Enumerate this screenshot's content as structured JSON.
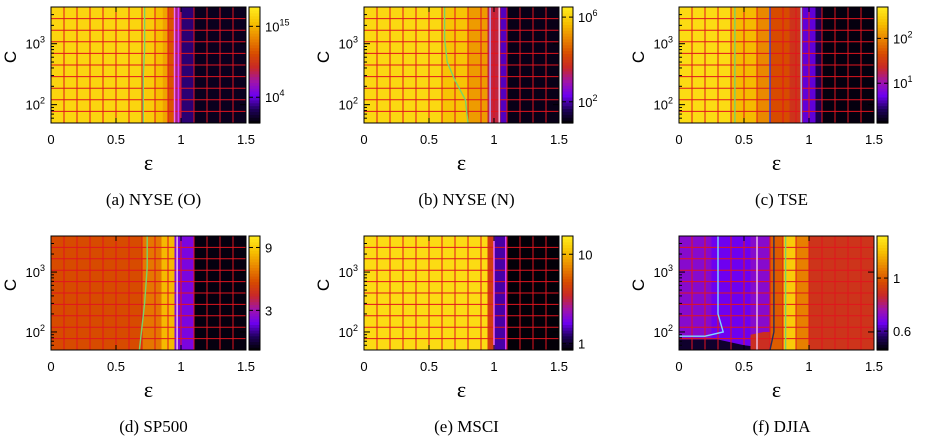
{
  "chart_data": [
    {
      "type": "heatmap",
      "caption": "(a) NYSE (O)",
      "xlabel": "ε",
      "ylabel": "C",
      "xlim": [
        0,
        1.5
      ],
      "ylim": [
        50,
        4000
      ],
      "y_scale": "log",
      "xticks": [
        {
          "v": 0,
          "label": "0"
        },
        {
          "v": 0.5,
          "label": "0.5"
        },
        {
          "v": 1,
          "label": "1"
        },
        {
          "v": 1.5,
          "label": "1.5"
        }
      ],
      "yticks": [
        {
          "v": 100,
          "base": "10",
          "exp": "2"
        },
        {
          "v": 1000,
          "base": "10",
          "exp": "3"
        }
      ],
      "colorbar": {
        "scale": "log",
        "range": [
          1,
          1e+18
        ],
        "ticks": [
          {
            "v": 10000.0,
            "base": "10",
            "exp": "4"
          },
          {
            "v": 1000000000000000.0,
            "base": "10",
            "exp": "15"
          }
        ]
      },
      "grid": true,
      "bands": [
        {
          "x": [
            0,
            0.72
          ],
          "level": 0.93
        },
        {
          "x": [
            0.72,
            0.8
          ],
          "level": 0.9
        },
        {
          "x": [
            0.8,
            0.86
          ],
          "level": 0.86
        },
        {
          "x": [
            0.86,
            0.9
          ],
          "level": 0.8
        },
        {
          "x": [
            0.9,
            0.95
          ],
          "level": 0.62
        },
        {
          "x": [
            0.95,
            1.0
          ],
          "level": 0.4
        },
        {
          "x": [
            1.0,
            1.1
          ],
          "level": 0.14
        },
        {
          "x": [
            1.1,
            1.5
          ],
          "level": 0.04
        }
      ],
      "contours": [
        {
          "color": "#7ad16a",
          "points": [
            [
              0.72,
              4000
            ],
            [
              0.72,
              800
            ],
            [
              0.71,
              300
            ],
            [
              0.71,
              50
            ]
          ]
        },
        {
          "color": "#f070ff",
          "points": [
            [
              0.95,
              4000
            ],
            [
              0.95,
              50
            ]
          ]
        },
        {
          "color": "#d23cff",
          "points": [
            [
              0.98,
              4000
            ],
            [
              0.98,
              50
            ]
          ]
        }
      ]
    },
    {
      "type": "heatmap",
      "caption": "(b) NYSE (N)",
      "xlabel": "ε",
      "ylabel": "C",
      "xlim": [
        0,
        1.5
      ],
      "ylim": [
        50,
        4000
      ],
      "y_scale": "log",
      "xticks": [
        {
          "v": 0,
          "label": "0"
        },
        {
          "v": 0.5,
          "label": "0.5"
        },
        {
          "v": 1,
          "label": "1"
        },
        {
          "v": 1.5,
          "label": "1.5"
        }
      ],
      "yticks": [
        {
          "v": 100,
          "base": "10",
          "exp": "2"
        },
        {
          "v": 1000,
          "base": "10",
          "exp": "3"
        }
      ],
      "colorbar": {
        "scale": "log",
        "range": [
          10,
          3000000
        ],
        "ticks": [
          {
            "v": 100,
            "base": "10",
            "exp": "2"
          },
          {
            "v": 1000000,
            "base": "10",
            "exp": "6"
          }
        ]
      },
      "grid": true,
      "bands": [
        {
          "x": [
            0,
            0.6
          ],
          "level": 0.94
        },
        {
          "x": [
            0.6,
            0.8
          ],
          "level": 0.88
        },
        {
          "x": [
            0.8,
            0.95
          ],
          "level": 0.78
        },
        {
          "x": [
            0.95,
            1.05
          ],
          "level": 0.46
        },
        {
          "x": [
            1.05,
            1.1
          ],
          "level": 0.2
        },
        {
          "x": [
            1.1,
            1.5
          ],
          "level": 0.03
        }
      ],
      "contours": [
        {
          "color": "#7ad16a",
          "points": [
            [
              0.62,
              4000
            ],
            [
              0.62,
              1200
            ],
            [
              0.64,
              500
            ],
            [
              0.7,
              250
            ],
            [
              0.78,
              120
            ],
            [
              0.8,
              50
            ]
          ]
        },
        {
          "color": "#b8a8ff",
          "points": [
            [
              0.97,
              4000
            ],
            [
              0.97,
              50
            ]
          ]
        },
        {
          "color": "#f2c8e8",
          "points": [
            [
              1.04,
              4000
            ],
            [
              1.04,
              50
            ]
          ]
        }
      ]
    },
    {
      "type": "heatmap",
      "caption": "(c) TSE",
      "xlabel": "ε",
      "ylabel": "C",
      "xlim": [
        0,
        1.5
      ],
      "ylim": [
        50,
        4000
      ],
      "y_scale": "log",
      "xticks": [
        {
          "v": 0,
          "label": "0"
        },
        {
          "v": 0.5,
          "label": "0.5"
        },
        {
          "v": 1,
          "label": "1"
        },
        {
          "v": 1.5,
          "label": "1.5"
        }
      ],
      "yticks": [
        {
          "v": 100,
          "base": "10",
          "exp": "2"
        },
        {
          "v": 1000,
          "base": "10",
          "exp": "3"
        }
      ],
      "colorbar": {
        "scale": "log",
        "range": [
          1.3,
          500
        ],
        "ticks": [
          {
            "v": 10,
            "base": "10",
            "exp": "1"
          },
          {
            "v": 100,
            "base": "10",
            "exp": "2"
          }
        ]
      },
      "grid": true,
      "bands": [
        {
          "x": [
            0,
            0.4
          ],
          "level": 0.95
        },
        {
          "x": [
            0.4,
            0.6
          ],
          "level": 0.85
        },
        {
          "x": [
            0.6,
            0.7
          ],
          "level": 0.74
        },
        {
          "x": [
            0.7,
            0.85
          ],
          "level": 0.6
        },
        {
          "x": [
            0.85,
            0.95
          ],
          "level": 0.52
        },
        {
          "x": [
            0.95,
            1.05
          ],
          "level": 0.22
        },
        {
          "x": [
            1.05,
            1.1
          ],
          "level": 0.1
        },
        {
          "x": [
            1.1,
            1.5
          ],
          "level": 0.02
        }
      ],
      "contours": [
        {
          "color": "#7ad16a",
          "points": [
            [
              0.43,
              4000
            ],
            [
              0.43,
              50
            ]
          ]
        },
        {
          "color": "#3a3ad0",
          "points": [
            [
              0.7,
              4000
            ],
            [
              0.7,
              50
            ]
          ]
        },
        {
          "color": "#a8c8ff",
          "points": [
            [
              0.94,
              4000
            ],
            [
              0.94,
              50
            ]
          ]
        }
      ]
    },
    {
      "type": "heatmap",
      "caption": "(d) SP500",
      "xlabel": "ε",
      "ylabel": "C",
      "xlim": [
        0,
        1.5
      ],
      "ylim": [
        50,
        4000
      ],
      "y_scale": "log",
      "xticks": [
        {
          "v": 0,
          "label": "0"
        },
        {
          "v": 0.5,
          "label": "0.5"
        },
        {
          "v": 1,
          "label": "1"
        },
        {
          "v": 1.5,
          "label": "1.5"
        }
      ],
      "yticks": [
        {
          "v": 100,
          "base": "10",
          "exp": "2"
        },
        {
          "v": 1000,
          "base": "10",
          "exp": "3"
        }
      ],
      "colorbar": {
        "scale": "log",
        "range": [
          1.5,
          11
        ],
        "ticks": [
          {
            "v": 3,
            "label": "3"
          },
          {
            "v": 9,
            "label": "9"
          }
        ]
      },
      "grid": true,
      "bands": [
        {
          "x": [
            0,
            0.7
          ],
          "level": 0.6
        },
        {
          "x": [
            0.7,
            0.85
          ],
          "level": 0.7
        },
        {
          "x": [
            0.85,
            0.95
          ],
          "level": 0.85
        },
        {
          "x": [
            0.95,
            1.1
          ],
          "level": 0.27
        },
        {
          "x": [
            1.1,
            1.5
          ],
          "level": 0.02
        }
      ],
      "contours": [
        {
          "color": "#7ad16a",
          "points": [
            [
              0.74,
              4000
            ],
            [
              0.74,
              1200
            ],
            [
              0.72,
              300
            ],
            [
              0.68,
              50
            ]
          ]
        },
        {
          "color": "#f2c8e8",
          "points": [
            [
              0.97,
              4000
            ],
            [
              0.97,
              50
            ]
          ]
        }
      ]
    },
    {
      "type": "heatmap",
      "caption": "(e) MSCI",
      "xlabel": "ε",
      "ylabel": "C",
      "xlim": [
        0,
        1.5
      ],
      "ylim": [
        50,
        4000
      ],
      "y_scale": "log",
      "xticks": [
        {
          "v": 0,
          "label": "0"
        },
        {
          "v": 0.5,
          "label": "0.5"
        },
        {
          "v": 1,
          "label": "1"
        },
        {
          "v": 1.5,
          "label": "1.5"
        }
      ],
      "yticks": [
        {
          "v": 100,
          "base": "10",
          "exp": "2"
        },
        {
          "v": 1000,
          "base": "10",
          "exp": "3"
        }
      ],
      "colorbar": {
        "scale": "log",
        "range": [
          0.85,
          16
        ],
        "ticks": [
          {
            "v": 1,
            "label": "1"
          },
          {
            "v": 10,
            "label": "10"
          }
        ]
      },
      "grid": true,
      "bands": [
        {
          "x": [
            0,
            0.95
          ],
          "level": 0.95
        },
        {
          "x": [
            0.95,
            1.0
          ],
          "level": 0.55
        },
        {
          "x": [
            1.0,
            1.1
          ],
          "level": 0.18
        },
        {
          "x": [
            1.1,
            1.5
          ],
          "level": 0.01
        }
      ],
      "contours": [
        {
          "color": "#f070ff",
          "points": [
            [
              1.0,
              4000
            ],
            [
              1.0,
              50
            ]
          ]
        },
        {
          "color": "#d23cff",
          "points": [
            [
              1.09,
              4000
            ],
            [
              1.09,
              50
            ]
          ]
        }
      ]
    },
    {
      "type": "heatmap",
      "caption": "(f) DJIA",
      "xlabel": "ε",
      "ylabel": "C",
      "xlim": [
        0,
        1.5
      ],
      "ylim": [
        50,
        4000
      ],
      "y_scale": "log",
      "xticks": [
        {
          "v": 0,
          "label": "0"
        },
        {
          "v": 0.5,
          "label": "0.5"
        },
        {
          "v": 1,
          "label": "1"
        },
        {
          "v": 1.5,
          "label": "1.5"
        }
      ],
      "yticks": [
        {
          "v": 100,
          "base": "10",
          "exp": "2"
        },
        {
          "v": 1000,
          "base": "10",
          "exp": "3"
        }
      ],
      "colorbar": {
        "scale": "log",
        "range": [
          0.5,
          1.5
        ],
        "ticks": [
          {
            "v": 0.6,
            "label": "0.6"
          },
          {
            "v": 1,
            "label": "1"
          }
        ]
      },
      "grid": true,
      "bands": [
        {
          "x": [
            0,
            0.25
          ],
          "level": 0.3
        },
        {
          "x": [
            0.25,
            0.55
          ],
          "level": 0.24
        },
        {
          "x": [
            0.55,
            0.7
          ],
          "level": 0.3
        },
        {
          "x": [
            0.7,
            0.8
          ],
          "level": 0.64
        },
        {
          "x": [
            0.8,
            0.9
          ],
          "level": 0.9
        },
        {
          "x": [
            0.9,
            1.0
          ],
          "level": 0.72
        },
        {
          "x": [
            1.0,
            1.5
          ],
          "level": 0.52
        }
      ],
      "regions": [
        {
          "level": 0.06,
          "points": [
            [
              0,
              75
            ],
            [
              0.3,
              75
            ],
            [
              0.5,
              60
            ],
            [
              0.65,
              55
            ],
            [
              0.65,
              50
            ],
            [
              0,
              50
            ]
          ]
        },
        {
          "level": 0.5,
          "points": [
            [
              0.55,
              90
            ],
            [
              0.65,
              100
            ],
            [
              0.7,
              100
            ],
            [
              0.7,
              50
            ],
            [
              0.55,
              50
            ]
          ]
        }
      ],
      "contours": [
        {
          "color": "#7fd8ff",
          "points": [
            [
              0.3,
              4000
            ],
            [
              0.3,
              200
            ],
            [
              0.34,
              100
            ],
            [
              0.2,
              85
            ],
            [
              0,
              85
            ]
          ]
        },
        {
          "color": "#f2c8e8",
          "points": [
            [
              0.6,
              4000
            ],
            [
              0.6,
              50
            ]
          ]
        },
        {
          "color": "#7ad16a",
          "points": [
            [
              0.82,
              4000
            ],
            [
              0.82,
              50
            ]
          ]
        },
        {
          "color": "#2a2a5a",
          "points": [
            [
              0.73,
              4000
            ],
            [
              0.73,
              100
            ],
            [
              0.7,
              50
            ]
          ]
        }
      ]
    }
  ]
}
